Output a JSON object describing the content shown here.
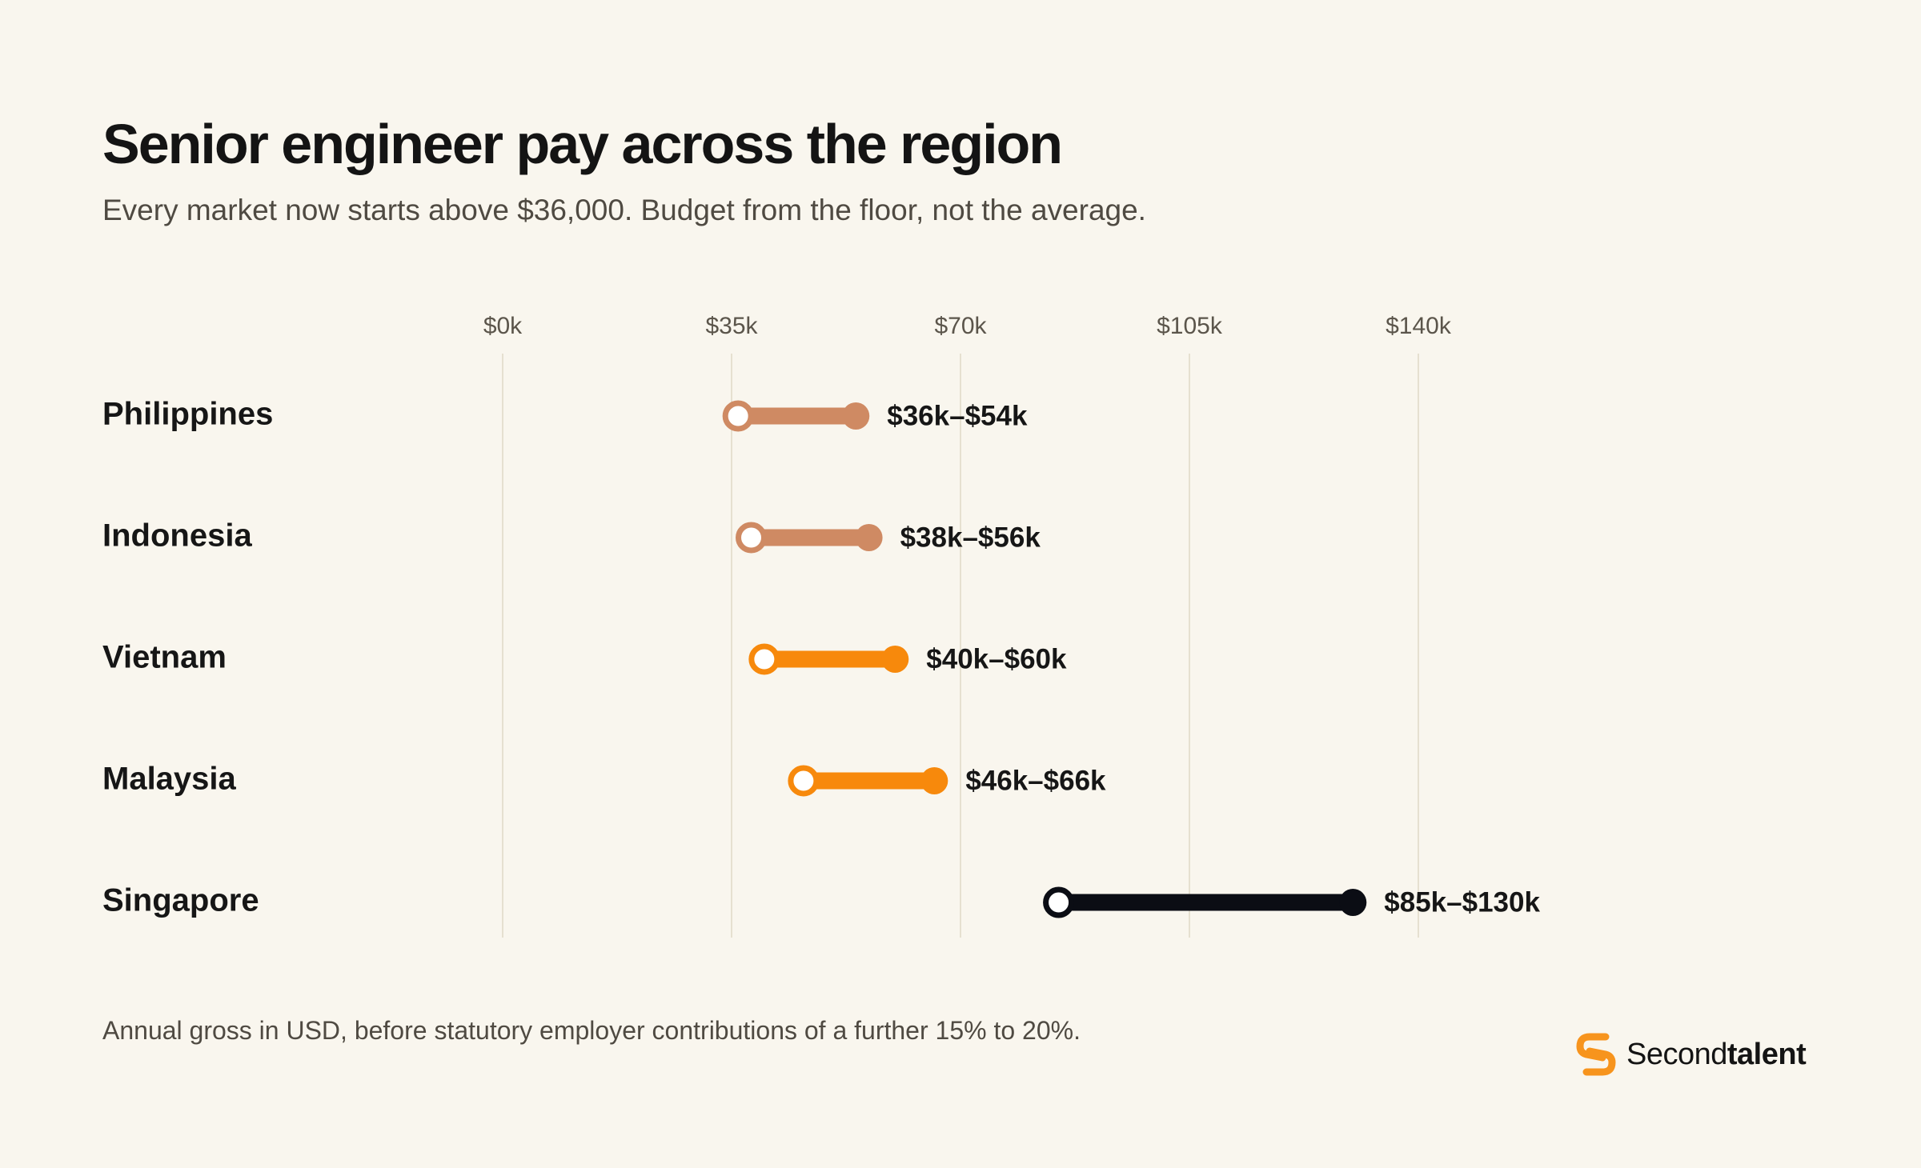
{
  "title": "Senior engineer pay across the region",
  "subtitle": "Every market now starts above $36,000. Budget from the floor, not the average.",
  "footnote": "Annual gross in USD, before statutory employer contributions of a further 15% to 20%.",
  "brand": {
    "name_regular": "Second",
    "name_bold": "talent",
    "logo_icon": "secondtalent-s-logo-icon",
    "accent_color": "#f7941d"
  },
  "chart_data": {
    "type": "dumbbell",
    "orientation": "horizontal",
    "x_ticks": [
      "$0k",
      "$35k",
      "$70k",
      "$105k",
      "$140k"
    ],
    "x_tick_values": [
      0,
      35,
      70,
      105,
      140
    ],
    "xlim": [
      0,
      140
    ],
    "x_unit": "USD thousands",
    "grid": true,
    "categories": [
      "Philippines",
      "Indonesia",
      "Vietnam",
      "Malaysia",
      "Singapore"
    ],
    "ranges": [
      {
        "name": "Philippines",
        "low": 36,
        "high": 54,
        "label": "$36k–$54k",
        "color": "#cf8a63"
      },
      {
        "name": "Indonesia",
        "low": 38,
        "high": 56,
        "label": "$38k–$56k",
        "color": "#cf8a63"
      },
      {
        "name": "Vietnam",
        "low": 40,
        "high": 60,
        "label": "$40k–$60k",
        "color": "#f7890c"
      },
      {
        "name": "Malaysia",
        "low": 46,
        "high": 66,
        "label": "$46k–$66k",
        "color": "#f7890c"
      },
      {
        "name": "Singapore",
        "low": 85,
        "high": 130,
        "label": "$85k–$130k",
        "color": "#0b0d14"
      }
    ]
  }
}
